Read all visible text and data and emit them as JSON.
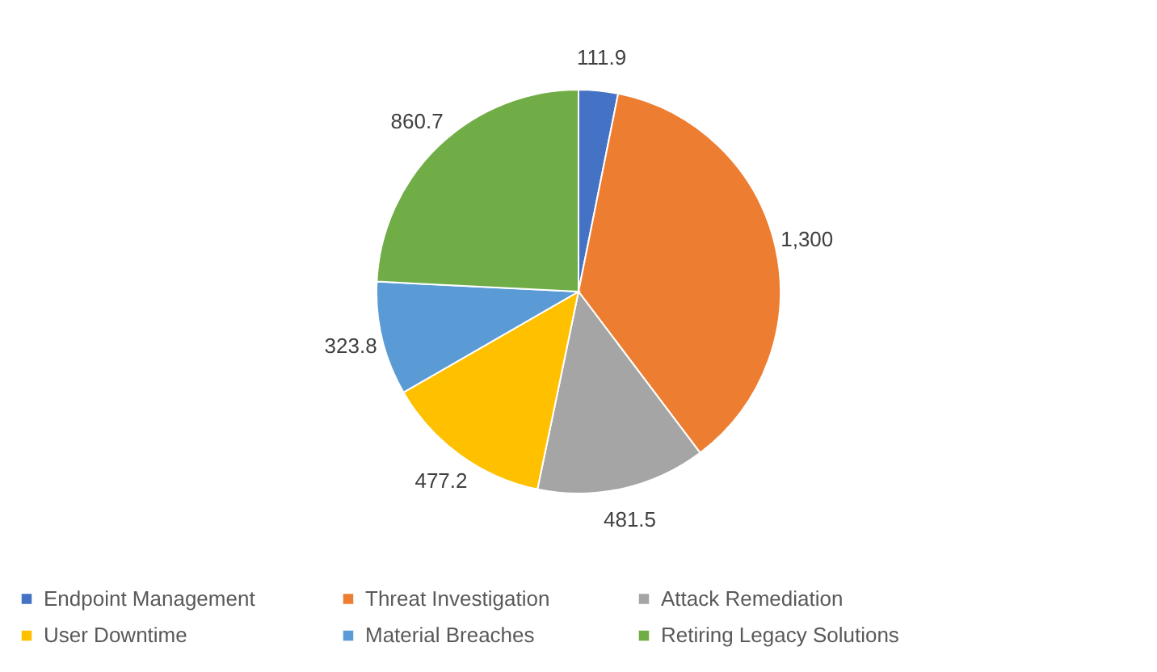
{
  "chart_data": {
    "type": "pie",
    "categories": [
      "Endpoint Management",
      "Threat Investigation",
      "Attack Remediation",
      "User Downtime",
      "Material Breaches",
      "Retiring Legacy Solutions"
    ],
    "values": [
      111.9,
      1300,
      481.5,
      477.2,
      323.8,
      860.7
    ],
    "value_labels": [
      "111.9",
      "1,300",
      "481.5",
      "477.2",
      "323.8",
      "860.7"
    ],
    "colors": [
      "#4472c4",
      "#ed7d31",
      "#a5a5a5",
      "#ffc000",
      "#5b9bd5",
      "#70ad47"
    ],
    "legend": "bottom"
  }
}
